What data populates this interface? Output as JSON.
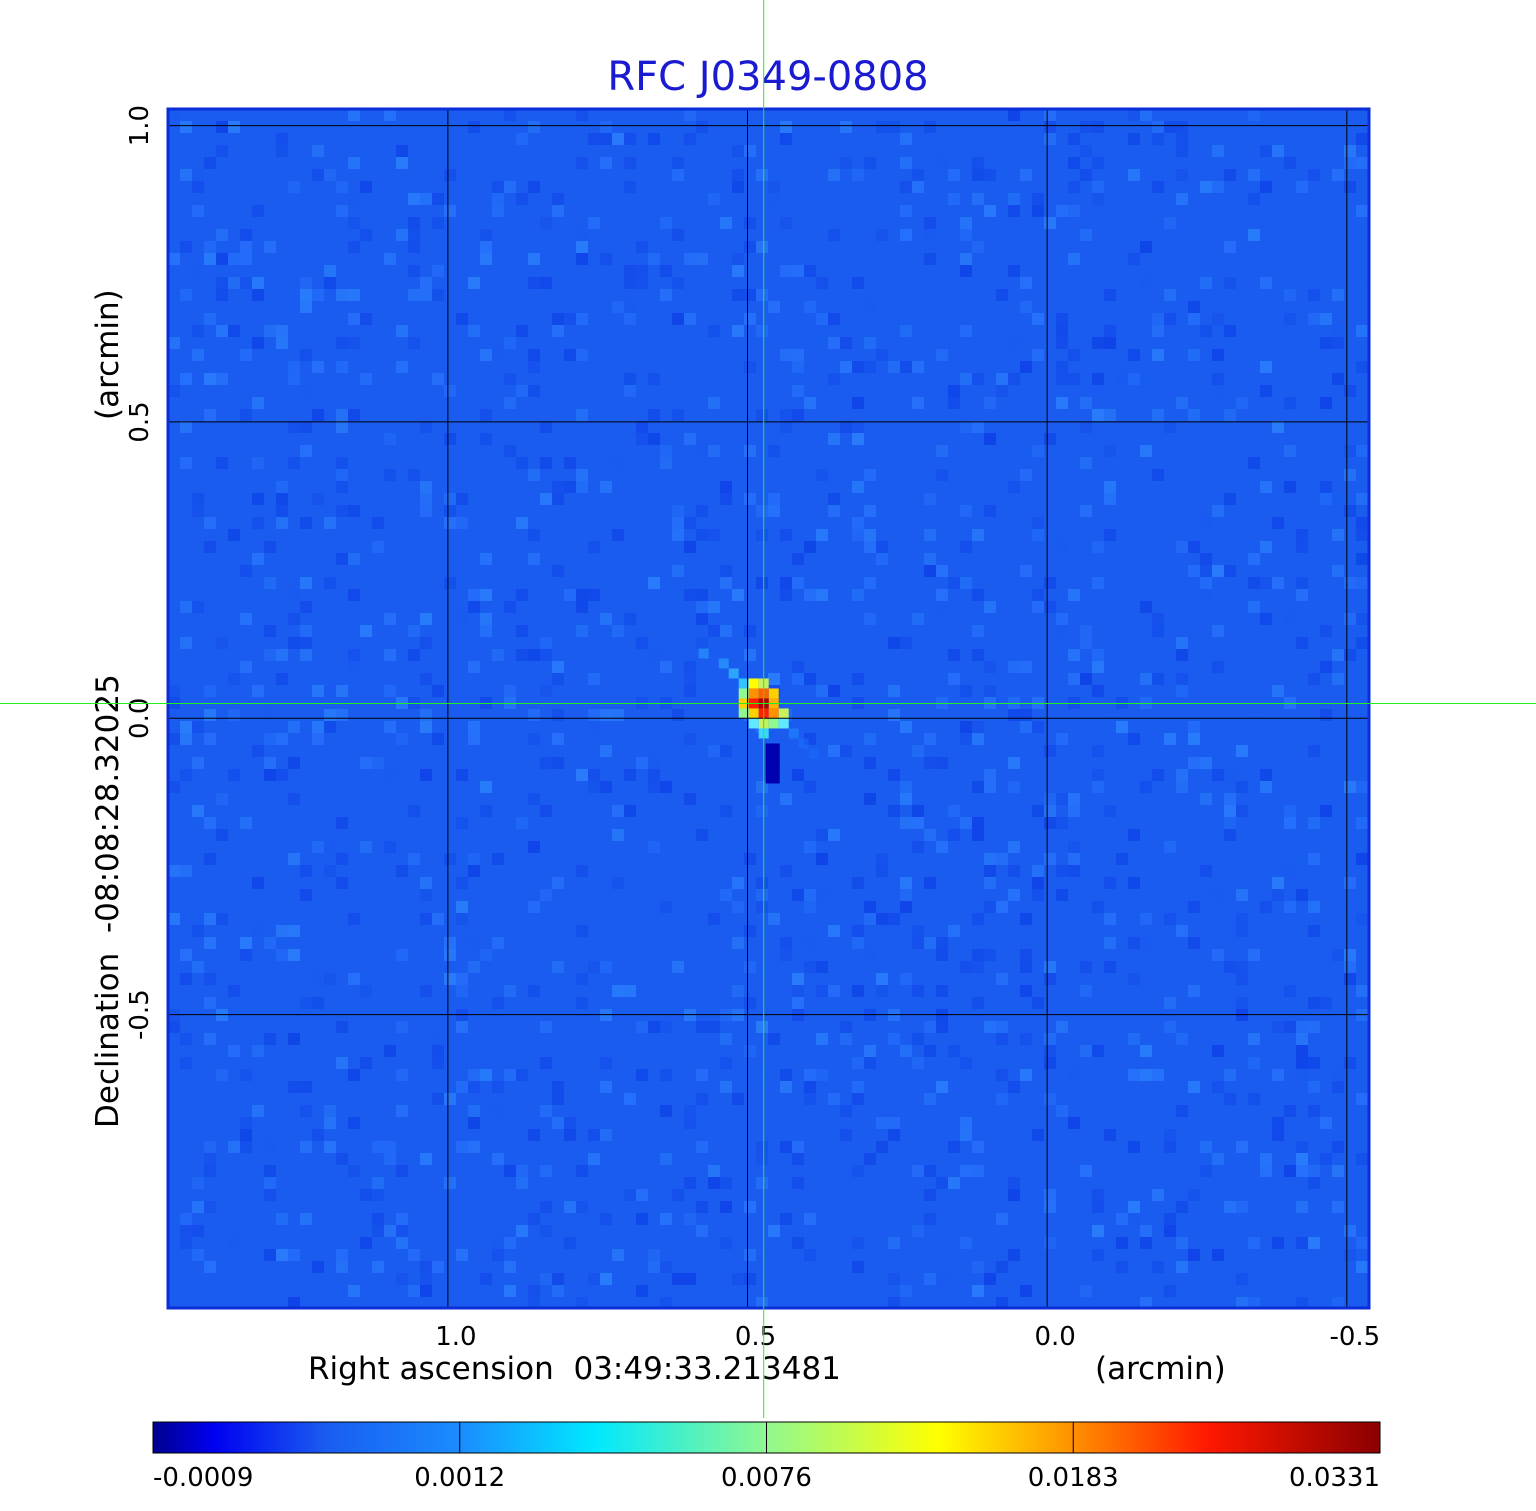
{
  "chart_data": {
    "type": "heatmap",
    "title": "RFC J0349-0808",
    "colors": {
      "title": "#1a1ad0",
      "frame": "#0a2ed8",
      "grid": "#000000",
      "crosshair": "#22ee22",
      "background": "#1a5cf0"
    },
    "colormap": "jet",
    "xlabel": "Right ascension  03:49:33.213481",
    "xunit": "(arcmin)",
    "ylabel": "Declination  -08:08:28.32025",
    "yunit": "(arcmin)",
    "xlim": [
      1.467,
      -0.537
    ],
    "ylim": [
      -0.995,
      1.028
    ],
    "x_ticks": [
      1.0,
      0.5,
      0.0,
      -0.5
    ],
    "x_tick_labels": [
      "1.0",
      "0.5",
      "0.0",
      "-0.5"
    ],
    "y_ticks": [
      1.0,
      0.5,
      0.0,
      -0.5
    ],
    "y_tick_labels": [
      "1.0",
      "0.5",
      "0.0",
      "-0.5"
    ],
    "grid": true,
    "crosshair": {
      "x": 0.473,
      "y": 0.025
    },
    "source": {
      "x": 0.473,
      "y": 0.025,
      "peak": 0.0331
    },
    "colorbar": {
      "position": "bottom",
      "tick_labels": [
        "-0.0009",
        "0.0012",
        "0.0076",
        "0.0183",
        "0.0331"
      ],
      "colors": [
        "#00008f",
        "#0a7aff",
        "#00f0ff",
        "#90f890",
        "#ffff00",
        "#ff9000",
        "#ff0000",
        "#8b0000"
      ]
    }
  }
}
